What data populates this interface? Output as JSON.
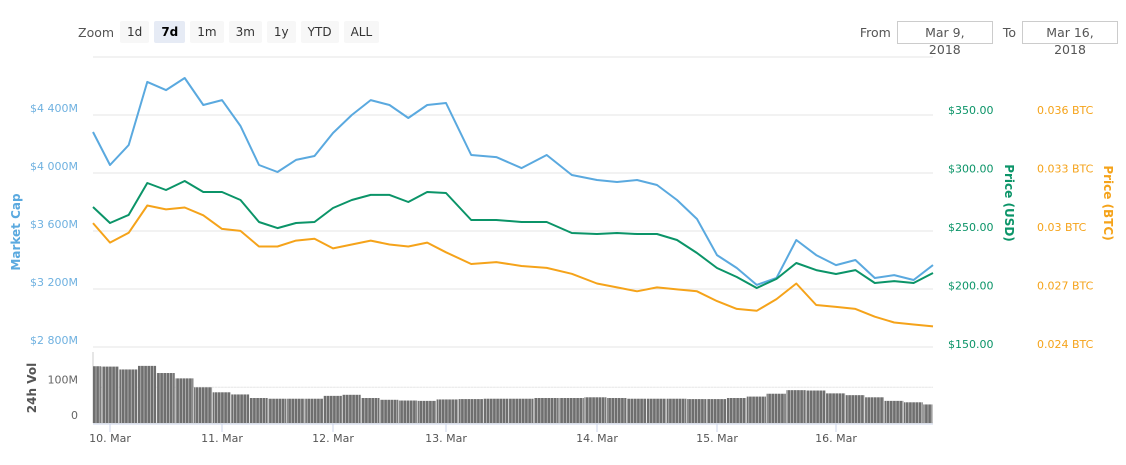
{
  "toolbar": {
    "zoom_label": "Zoom",
    "zoom_buttons": [
      "1d",
      "7d",
      "1m",
      "3m",
      "1y",
      "YTD",
      "ALL"
    ],
    "active_zoom": "7d",
    "from_label": "From",
    "from_value": "Mar 9, 2018",
    "to_label": "To",
    "to_value": "Mar 16, 2018"
  },
  "colors": {
    "market_cap": "#5aa9df",
    "price_usd": "#0b9468",
    "price_btc": "#f5a31a",
    "volume": "#6e6e6e",
    "grid": "#e6e6e6"
  },
  "chart_data": {
    "type": "line",
    "x_ticks": [
      "10. Mar",
      "11. Mar",
      "12. Mar",
      "13. Mar",
      "14. Mar",
      "15. Mar",
      "16. Mar"
    ],
    "x_tick_dates": [
      "2018-03-10 00:00",
      "2018-03-11 00:00",
      "2018-03-12 00:00",
      "2018-03-13 00:00",
      "2018-03-14 00:00",
      "2018-03-15 00:00",
      "2018-03-16 00:00"
    ],
    "x": [
      "2018-03-09 20:00",
      "2018-03-10 00:00",
      "2018-03-10 04:00",
      "2018-03-10 08:00",
      "2018-03-10 12:00",
      "2018-03-10 16:00",
      "2018-03-10 20:00",
      "2018-03-11 00:00",
      "2018-03-11 04:00",
      "2018-03-11 08:00",
      "2018-03-11 12:00",
      "2018-03-11 16:00",
      "2018-03-11 20:00",
      "2018-03-12 00:00",
      "2018-03-12 04:00",
      "2018-03-12 08:00",
      "2018-03-12 12:00",
      "2018-03-12 16:00",
      "2018-03-12 20:00",
      "2018-03-13 00:00",
      "2018-03-13 04:00",
      "2018-03-13 08:00",
      "2018-03-13 12:00",
      "2018-03-13 16:00",
      "2018-03-13 20:00",
      "2018-03-14 00:00",
      "2018-03-14 04:00",
      "2018-03-14 08:00",
      "2018-03-14 12:00",
      "2018-03-14 16:00",
      "2018-03-14 20:00",
      "2018-03-15 00:00",
      "2018-03-15 04:00",
      "2018-03-15 08:00",
      "2018-03-15 12:00",
      "2018-03-15 16:00",
      "2018-03-15 20:00",
      "2018-03-16 00:00",
      "2018-03-16 04:00",
      "2018-03-16 08:00",
      "2018-03-16 12:00",
      "2018-03-16 16:00",
      "2018-03-16 20:00"
    ],
    "axes": {
      "market_cap": {
        "title": "Market Cap",
        "ticks": [
          "$2 800M",
          "$3 200M",
          "$3 600M",
          "$4 000M",
          "$4 400M"
        ],
        "tick_values": [
          2800,
          3200,
          3600,
          4000,
          4400
        ],
        "range": [
          2800,
          4800
        ],
        "unit": "M USD"
      },
      "price_usd": {
        "title": "Price (USD)",
        "ticks": [
          "$150.00",
          "$200.00",
          "$250.00",
          "$300.00",
          "$350.00"
        ],
        "tick_values": [
          150,
          200,
          250,
          300,
          350
        ],
        "range": [
          150,
          350
        ]
      },
      "price_btc": {
        "title": "Price (BTC)",
        "ticks": [
          "0.024 BTC",
          "0.027 BTC",
          "0.03 BTC",
          "0.033 BTC",
          "0.036 BTC"
        ],
        "tick_values": [
          0.024,
          0.027,
          0.03,
          0.033,
          0.036
        ],
        "range": [
          0.024,
          0.036
        ]
      },
      "volume": {
        "title": "24h Vol",
        "ticks": [
          "0",
          "100M"
        ],
        "tick_values": [
          0,
          100
        ],
        "range": [
          0,
          200
        ],
        "unit": "M USD"
      }
    },
    "series": [
      {
        "key": "market_cap",
        "axis": "market_cap",
        "values": [
          4283,
          4055,
          4193,
          4628,
          4572,
          4655,
          4469,
          4503,
          4324,
          4055,
          4007,
          4090,
          4117,
          4276,
          4400,
          4503,
          4469,
          4379,
          4469,
          4483,
          4124,
          4110,
          4034,
          4124,
          3986,
          3952,
          3938,
          3952,
          3917,
          3814,
          3683,
          3434,
          3345,
          3228,
          3276,
          3538,
          3434,
          3365,
          3400,
          3276,
          3296,
          3262,
          3365
        ]
      },
      {
        "key": "price_usd",
        "axis": "price_usd",
        "values": [
          267.1,
          253.4,
          260.3,
          287.6,
          281.6,
          289.3,
          279.9,
          279.9,
          273.1,
          254.3,
          249.1,
          253.4,
          254.3,
          266.2,
          273.1,
          277.4,
          277.4,
          271.4,
          279.9,
          279.1,
          256.0,
          256.0,
          254.3,
          254.3,
          244.9,
          244.0,
          244.9,
          244.0,
          244.0,
          238.9,
          227.8,
          215.0,
          207.3,
          197.9,
          205.6,
          219.2,
          213.2,
          209.8,
          213.2,
          202.1,
          203.8,
          202.1,
          210.7
        ]
      },
      {
        "key": "price_btc",
        "axis": "price_btc",
        "values": [
          0.0302,
          0.0292,
          0.0297,
          0.0311,
          0.0309,
          0.031,
          0.0306,
          0.0299,
          0.0298,
          0.029,
          0.029,
          0.0293,
          0.0294,
          0.0289,
          0.0291,
          0.0293,
          0.0291,
          0.029,
          0.0292,
          0.0287,
          0.0281,
          0.0282,
          0.028,
          0.0279,
          0.0276,
          0.0271,
          0.0269,
          0.0267,
          0.0269,
          0.0268,
          0.0267,
          0.0262,
          0.0258,
          0.0257,
          0.0263,
          0.0271,
          0.026,
          0.0259,
          0.0258,
          0.0254,
          0.0251,
          0.025,
          0.0249
        ]
      },
      {
        "key": "volume",
        "axis": "volume",
        "type": "bar",
        "values": [
          159,
          158,
          150,
          160,
          140,
          125,
          100,
          86,
          80,
          70,
          68,
          68,
          68,
          76,
          79,
          70,
          65,
          63,
          62,
          66,
          67,
          68,
          68,
          70,
          70,
          72,
          70,
          68,
          68,
          68,
          67,
          67,
          70,
          74,
          82,
          92,
          91,
          83,
          78,
          72,
          62,
          58,
          52
        ]
      }
    ],
    "grid": true,
    "legend": "none"
  }
}
